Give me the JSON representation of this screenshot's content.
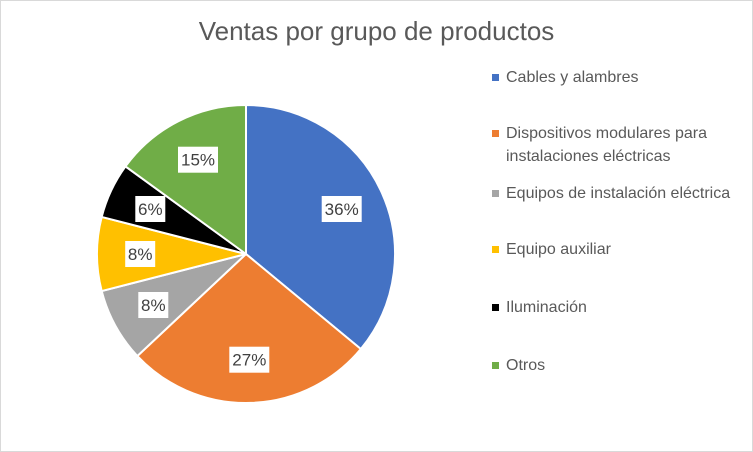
{
  "chart_data": {
    "type": "pie",
    "title": "Ventas por grupo de productos",
    "legend_position": "right",
    "slices": [
      {
        "label": "Cables y alambres",
        "value": 36,
        "color": "#4472C4"
      },
      {
        "label": "Dispositivos modulares para instalaciones eléctricas",
        "value": 27,
        "color": "#ED7D31"
      },
      {
        "label": "Equipos de instalación eléctrica",
        "value": 8,
        "color": "#A5A5A5"
      },
      {
        "label": "Equipo auxiliar",
        "value": 8,
        "color": "#FFC000"
      },
      {
        "label": "Iluminación",
        "value": 6,
        "color": "#000000"
      },
      {
        "label": "Otros",
        "value": 15,
        "color": "#70AD47"
      }
    ],
    "data_label_suffix": "%"
  }
}
